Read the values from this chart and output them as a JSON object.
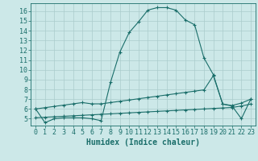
{
  "xlabel": "Humidex (Indice chaleur)",
  "ylabel": "",
  "bg_color": "#cce8e8",
  "grid_color": "#aacccc",
  "line_color": "#1a6e6a",
  "xlim": [
    -0.5,
    23.5
  ],
  "ylim": [
    4.3,
    16.8
  ],
  "yticks": [
    5,
    6,
    7,
    8,
    9,
    10,
    11,
    12,
    13,
    14,
    15,
    16
  ],
  "xticks": [
    0,
    1,
    2,
    3,
    4,
    5,
    6,
    7,
    8,
    9,
    10,
    11,
    12,
    13,
    14,
    15,
    16,
    17,
    18,
    19,
    20,
    21,
    22,
    23
  ],
  "xtick_labels": [
    "0",
    "1",
    "2",
    "3",
    "4",
    "5",
    "6",
    "7",
    "8",
    "9",
    "10",
    "11",
    "12",
    "13",
    "14",
    "15",
    "16",
    "17",
    "18",
    "19",
    "20",
    "21",
    "22",
    "23"
  ],
  "main_x": [
    0,
    1,
    2,
    3,
    4,
    5,
    6,
    7,
    8,
    9,
    10,
    11,
    12,
    13,
    14,
    15,
    16,
    17,
    18,
    19,
    20,
    21,
    22,
    23
  ],
  "main_y": [
    6.0,
    4.6,
    5.0,
    5.1,
    5.1,
    5.1,
    5.0,
    4.8,
    8.7,
    11.8,
    13.8,
    14.9,
    16.1,
    16.35,
    16.35,
    16.1,
    15.1,
    14.6,
    11.2,
    9.5,
    6.5,
    6.3,
    5.0,
    7.0
  ],
  "upper_x": [
    0,
    1,
    2,
    3,
    4,
    5,
    6,
    7,
    8,
    9,
    10,
    11,
    12,
    13,
    14,
    15,
    16,
    17,
    18,
    19,
    20,
    21,
    22,
    23
  ],
  "upper_y": [
    6.0,
    6.13,
    6.26,
    6.39,
    6.52,
    6.65,
    6.52,
    6.52,
    6.65,
    6.78,
    6.91,
    7.04,
    7.17,
    7.3,
    7.43,
    7.56,
    7.69,
    7.82,
    7.95,
    9.4,
    6.5,
    6.35,
    6.6,
    7.0
  ],
  "lower_x": [
    0,
    1,
    2,
    3,
    4,
    5,
    6,
    7,
    8,
    9,
    10,
    11,
    12,
    13,
    14,
    15,
    16,
    17,
    18,
    19,
    20,
    21,
    22,
    23
  ],
  "lower_y": [
    5.1,
    5.15,
    5.2,
    5.25,
    5.3,
    5.35,
    5.4,
    5.45,
    5.5,
    5.55,
    5.6,
    5.65,
    5.7,
    5.75,
    5.8,
    5.85,
    5.9,
    5.95,
    6.0,
    6.05,
    6.1,
    6.15,
    6.3,
    6.5
  ],
  "fontsize": 7,
  "tick_fontsize": 6,
  "label_fontsize": 7
}
